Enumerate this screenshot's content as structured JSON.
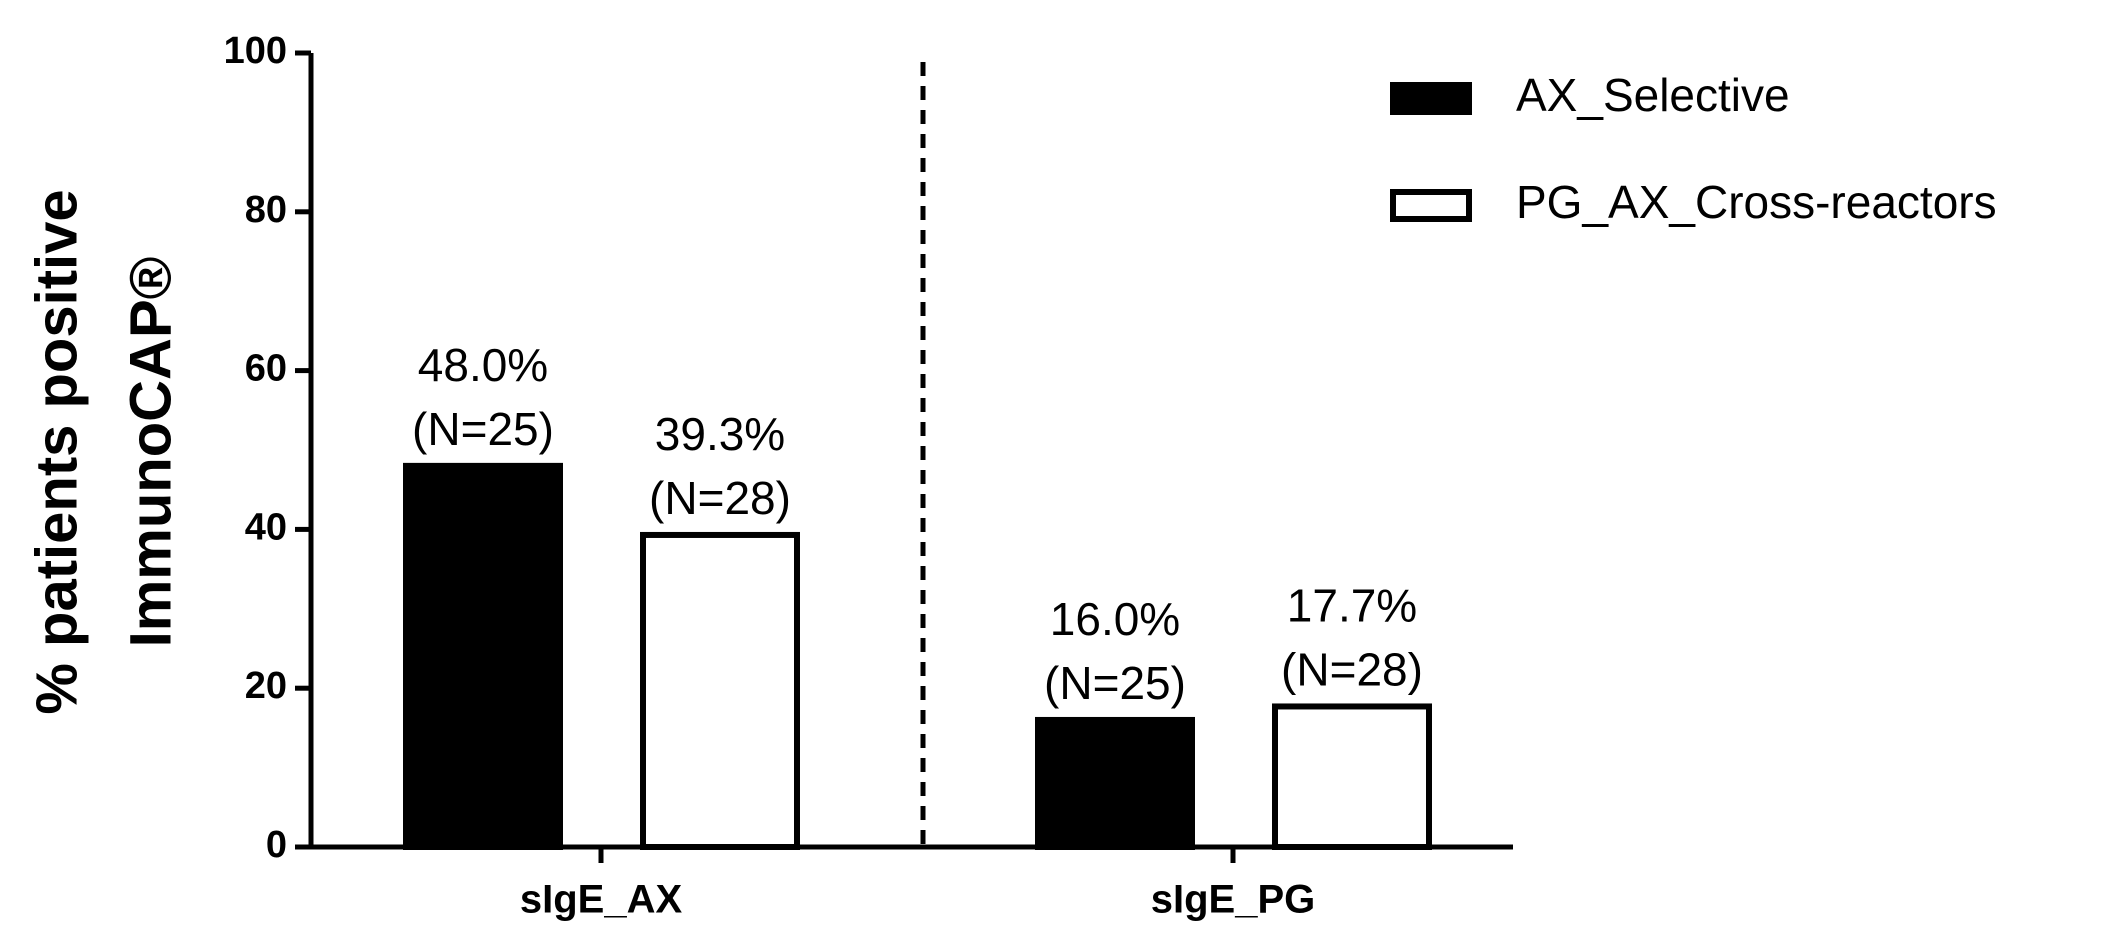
{
  "chart_data": {
    "type": "bar",
    "ylabel": [
      "% patients positive",
      "ImmunoCAP®"
    ],
    "categories": [
      "sIgE_AX",
      "sIgE_PG"
    ],
    "series": [
      {
        "name": "AX_Selective",
        "color": "#000000",
        "values": [
          48.0,
          16.0
        ],
        "value_labels": [
          "48.0%",
          "16.0%"
        ],
        "n_labels": [
          "(N=25)",
          "(N=25)"
        ]
      },
      {
        "name": "PG_AX_Cross-reactors",
        "color": "#ffffff",
        "values": [
          39.3,
          17.7
        ],
        "value_labels": [
          "39.3%",
          "17.7%"
        ],
        "n_labels": [
          "(N=28)",
          "(N=28)"
        ]
      }
    ],
    "ylim": [
      0,
      100
    ],
    "yticks": [
      0,
      20,
      40,
      60,
      80,
      100
    ],
    "legend": "upper right"
  }
}
